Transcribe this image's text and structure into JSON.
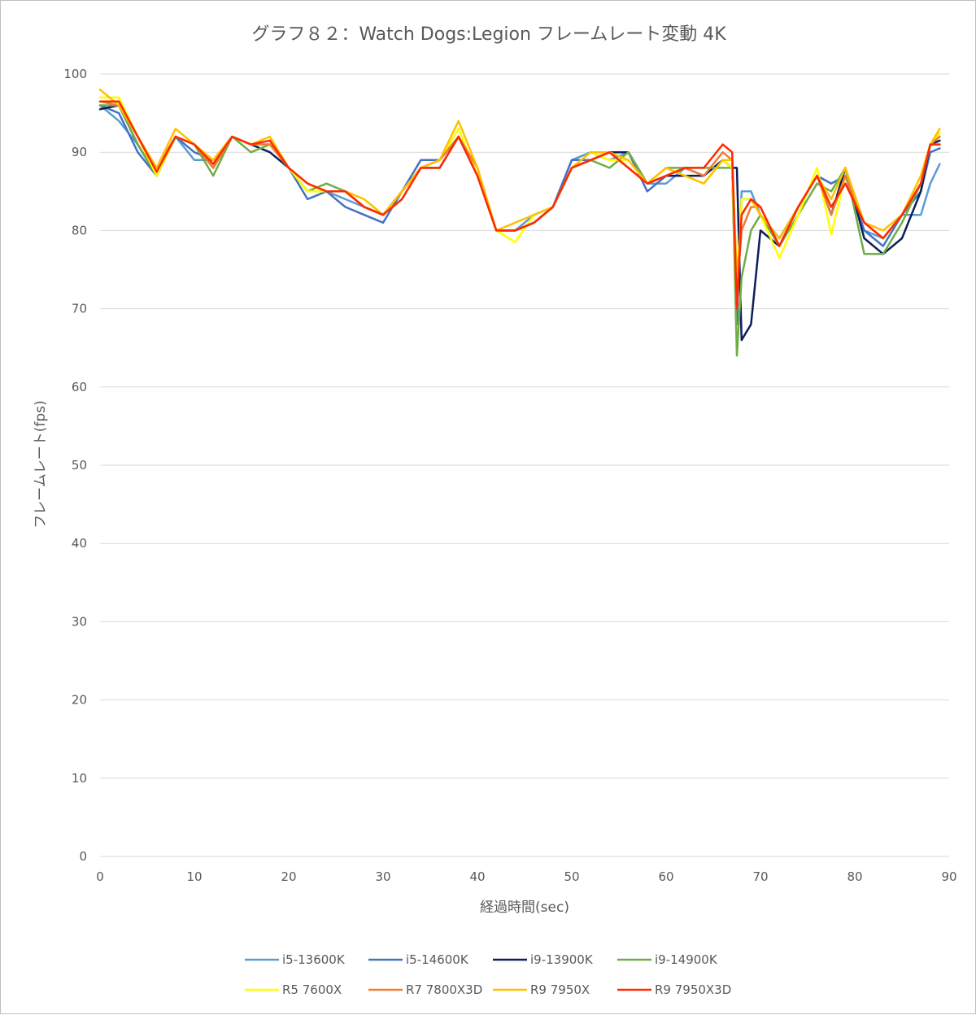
{
  "chart_data": {
    "type": "line",
    "title": "グラフ８２：Watch Dogs:Legion フレームレート変動 4K",
    "xlabel": "経過時間(sec)",
    "ylabel": "フレームレート(fps)",
    "xlim": [
      0,
      90
    ],
    "ylim": [
      0,
      100
    ],
    "x_ticks": [
      0,
      10,
      20,
      30,
      40,
      50,
      60,
      70,
      80,
      90
    ],
    "y_ticks": [
      0,
      10,
      20,
      30,
      40,
      50,
      60,
      70,
      80,
      90,
      100
    ],
    "grid": "horizontal",
    "legend_position": "bottom",
    "x": [
      0,
      2,
      4,
      6,
      8,
      10,
      12,
      14,
      16,
      18,
      20,
      22,
      24,
      26,
      28,
      30,
      32,
      34,
      36,
      38,
      40,
      42,
      44,
      46,
      48,
      50,
      52,
      54,
      56,
      58,
      60,
      62,
      64,
      66,
      67,
      67.5,
      68,
      69,
      70,
      72,
      74,
      76,
      77.5,
      79,
      81,
      83,
      85,
      87,
      88,
      89
    ],
    "series": [
      {
        "name": "i5-13600K",
        "color": "#5b9bd5",
        "values": [
          96,
          94,
          91,
          87,
          92,
          89,
          89,
          92,
          91,
          91,
          88,
          85,
          85,
          84,
          83,
          82,
          85,
          88,
          89,
          92,
          87,
          80,
          80,
          82,
          83,
          89,
          90,
          89,
          90,
          86,
          86,
          88,
          87,
          89,
          88,
          68,
          85,
          85,
          82,
          79,
          83,
          87,
          86,
          87,
          80,
          79,
          82,
          82,
          86,
          88.5
        ]
      },
      {
        "name": "i5-14600K",
        "color": "#4472c4",
        "values": [
          96,
          95,
          90,
          87,
          92,
          90,
          89,
          92,
          91,
          91,
          88,
          84,
          85,
          83,
          82,
          81,
          85,
          89,
          89,
          92,
          87,
          80,
          80,
          81,
          83,
          89,
          89,
          90,
          90,
          85,
          87,
          88,
          87,
          89,
          88,
          68,
          84,
          84,
          82,
          79,
          83,
          87,
          86,
          87,
          80,
          78,
          82,
          85,
          90,
          90.5
        ]
      },
      {
        "name": "i9-13900K",
        "color": "#0d1e5a",
        "values": [
          95.5,
          96,
          91,
          87,
          92,
          91,
          88,
          92,
          91,
          90,
          88,
          85,
          85,
          85,
          83,
          82,
          85,
          88,
          88,
          92,
          87,
          80,
          80,
          81,
          83,
          88,
          89,
          90,
          90,
          86,
          87,
          87,
          87,
          89,
          88,
          88,
          66,
          68,
          80,
          78,
          83,
          87,
          82,
          88,
          79,
          77,
          79,
          85,
          91,
          91.5
        ]
      },
      {
        "name": "i9-14900K",
        "color": "#70ad47",
        "values": [
          96,
          96,
          91,
          87,
          92,
          91,
          87,
          92,
          90,
          91,
          88,
          85,
          86,
          85,
          83,
          82,
          84,
          88,
          88,
          92,
          87,
          80,
          80,
          81,
          83,
          88,
          89,
          88,
          90,
          86,
          88,
          88,
          88,
          88,
          88,
          64,
          74,
          80,
          82,
          78,
          82,
          86,
          85,
          88,
          77,
          77,
          81,
          86,
          91,
          91
        ]
      },
      {
        "name": "R5 7600X",
        "color": "#ffff00",
        "values": [
          97,
          97,
          92,
          87,
          92,
          91,
          89,
          92,
          91,
          91,
          88,
          85,
          85,
          85,
          84,
          82,
          85,
          88,
          89,
          93,
          87,
          80,
          78.5,
          82,
          83,
          88,
          90,
          89,
          89,
          86,
          88,
          87,
          86,
          89,
          88,
          70,
          84,
          84,
          82,
          76.5,
          82,
          88,
          79.5,
          87,
          81,
          79,
          82,
          86,
          91,
          92.5
        ]
      },
      {
        "name": "R7 7800X3D",
        "color": "#ed7d31",
        "values": [
          96.5,
          96,
          92,
          88,
          92,
          91,
          88,
          92,
          91,
          91,
          88,
          86,
          85,
          85,
          83,
          82,
          85,
          88,
          89,
          92,
          88,
          80,
          80,
          81,
          83,
          88,
          89,
          90,
          88,
          86,
          87,
          88,
          87,
          90,
          89,
          72,
          80,
          83,
          83,
          78,
          83,
          87,
          82,
          87,
          81,
          79,
          82,
          86,
          91,
          92
        ]
      },
      {
        "name": "R9 7950X",
        "color": "#ffc000",
        "values": [
          98,
          96,
          92,
          88,
          93,
          91,
          89,
          92,
          91,
          92,
          88,
          86,
          85,
          85,
          84,
          82,
          85,
          88,
          89,
          94,
          88,
          80,
          81,
          82,
          83,
          88,
          90,
          90,
          89,
          86,
          88,
          87,
          86,
          89,
          89,
          74,
          82,
          84,
          82,
          79,
          83,
          87,
          84,
          88,
          81,
          80,
          82,
          87,
          91,
          93
        ]
      },
      {
        "name": "R9 7950X3D",
        "color": "#ff2a00",
        "values": [
          96.5,
          96.5,
          92,
          87.5,
          92,
          91,
          88.5,
          92,
          91,
          91.5,
          88,
          86,
          85,
          85,
          83,
          82,
          84,
          88,
          88,
          92,
          87,
          80,
          80,
          81,
          83,
          88,
          89,
          90,
          88,
          86,
          87,
          88,
          88,
          91,
          90,
          70,
          82,
          84,
          83,
          78,
          83,
          87,
          83,
          86,
          81,
          79,
          82,
          86,
          91,
          91
        ]
      }
    ]
  }
}
